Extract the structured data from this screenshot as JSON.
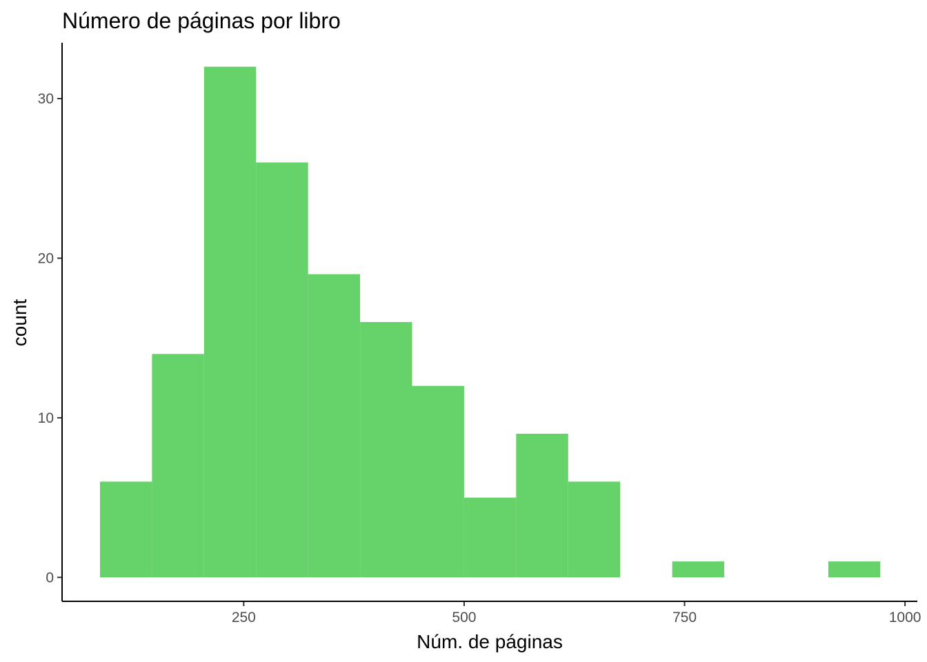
{
  "chart_data": {
    "type": "bar",
    "subtype": "histogram",
    "title": "Número de páginas por libro",
    "xlabel": "Núm. de páginas",
    "ylabel": "count",
    "bar_color": "#66d36a",
    "xlim": [
      44,
      1014
    ],
    "ylim": [
      -1.5,
      33.5
    ],
    "x_ticks": [
      250,
      500,
      750,
      1000
    ],
    "y_ticks": [
      0,
      10,
      20,
      30
    ],
    "bin_width": 59,
    "bins": [
      {
        "start": 87,
        "end": 146,
        "count": 6
      },
      {
        "start": 146,
        "end": 205,
        "count": 14
      },
      {
        "start": 205,
        "end": 264,
        "count": 32
      },
      {
        "start": 264,
        "end": 323,
        "count": 26
      },
      {
        "start": 323,
        "end": 382,
        "count": 19
      },
      {
        "start": 382,
        "end": 441,
        "count": 16
      },
      {
        "start": 441,
        "end": 500,
        "count": 12
      },
      {
        "start": 500,
        "end": 559,
        "count": 5
      },
      {
        "start": 559,
        "end": 618,
        "count": 9
      },
      {
        "start": 618,
        "end": 677,
        "count": 6
      },
      {
        "start": 677,
        "end": 736,
        "count": 0
      },
      {
        "start": 736,
        "end": 795,
        "count": 1
      },
      {
        "start": 795,
        "end": 854,
        "count": 0
      },
      {
        "start": 854,
        "end": 913,
        "count": 0
      },
      {
        "start": 913,
        "end": 972,
        "count": 1
      }
    ],
    "grid": false,
    "legend": "none"
  }
}
